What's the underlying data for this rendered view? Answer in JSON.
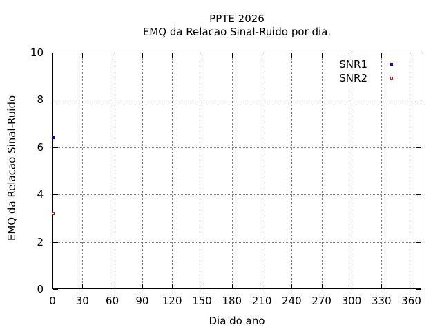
{
  "window": {
    "background": "#ffffff"
  },
  "chart_data": {
    "type": "scatter",
    "title": "PPTE 2026",
    "subtitle": "EMQ da Relacao Sinal-Ruido por dia.",
    "xlabel": "Dia do ano",
    "ylabel": "EMQ da Relacao Sinal-Ruido",
    "xlim": [
      0,
      370
    ],
    "ylim": [
      0,
      10
    ],
    "xticks": [
      0,
      30,
      60,
      90,
      120,
      150,
      180,
      210,
      240,
      270,
      300,
      330,
      360
    ],
    "yticks": [
      0,
      2,
      4,
      6,
      8,
      10
    ],
    "grid": true,
    "legend": {
      "position": "top-right-inside",
      "entries": [
        "SNR1",
        "SNR2"
      ]
    },
    "series": [
      {
        "name": "SNR1",
        "color": "#0000ff",
        "marker": "filled-square",
        "points": [
          {
            "x": 1,
            "y": 6.4
          }
        ]
      },
      {
        "name": "SNR2",
        "color": "#ff0000",
        "marker": "open-square",
        "points": [
          {
            "x": 1,
            "y": 3.2
          }
        ]
      }
    ]
  },
  "colors": {
    "axis": "#000000",
    "grid": "#888888",
    "text": "#000000",
    "snr1": "#0000ff",
    "snr2": "#ff0000",
    "background": "#ffffff"
  }
}
